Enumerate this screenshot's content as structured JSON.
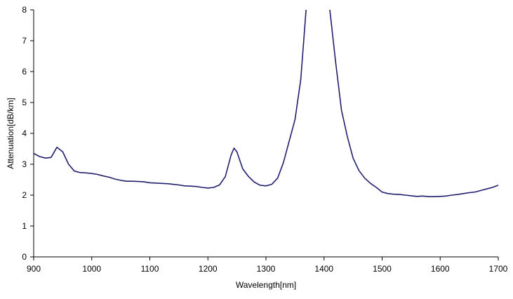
{
  "chart_data": {
    "type": "line",
    "title": "",
    "xlabel": "Wavelength[nm]",
    "ylabel": "Attenuation[dB/km]",
    "xlim": [
      900,
      1700
    ],
    "ylim": [
      0,
      8
    ],
    "xticks": [
      900,
      1000,
      1100,
      1200,
      1300,
      1400,
      1500,
      1600,
      1700
    ],
    "yticks": [
      0,
      1,
      2,
      3,
      4,
      5,
      6,
      7,
      8
    ],
    "grid": false,
    "legend": "none",
    "series": [
      {
        "color": "#1f1f6e",
        "points": [
          [
            900,
            3.35
          ],
          [
            910,
            3.25
          ],
          [
            920,
            3.2
          ],
          [
            930,
            3.22
          ],
          [
            940,
            3.55
          ],
          [
            950,
            3.4
          ],
          [
            960,
            3.0
          ],
          [
            970,
            2.78
          ],
          [
            980,
            2.73
          ],
          [
            990,
            2.72
          ],
          [
            1000,
            2.7
          ],
          [
            1010,
            2.67
          ],
          [
            1020,
            2.62
          ],
          [
            1030,
            2.58
          ],
          [
            1040,
            2.52
          ],
          [
            1050,
            2.48
          ],
          [
            1060,
            2.45
          ],
          [
            1070,
            2.45
          ],
          [
            1080,
            2.44
          ],
          [
            1090,
            2.43
          ],
          [
            1100,
            2.4
          ],
          [
            1110,
            2.39
          ],
          [
            1120,
            2.38
          ],
          [
            1130,
            2.37
          ],
          [
            1140,
            2.35
          ],
          [
            1150,
            2.33
          ],
          [
            1160,
            2.3
          ],
          [
            1170,
            2.29
          ],
          [
            1180,
            2.28
          ],
          [
            1190,
            2.25
          ],
          [
            1200,
            2.23
          ],
          [
            1210,
            2.25
          ],
          [
            1220,
            2.33
          ],
          [
            1230,
            2.6
          ],
          [
            1240,
            3.3
          ],
          [
            1245,
            3.52
          ],
          [
            1250,
            3.4
          ],
          [
            1260,
            2.85
          ],
          [
            1270,
            2.6
          ],
          [
            1280,
            2.42
          ],
          [
            1290,
            2.32
          ],
          [
            1300,
            2.3
          ],
          [
            1310,
            2.35
          ],
          [
            1320,
            2.55
          ],
          [
            1330,
            3.05
          ],
          [
            1340,
            3.75
          ],
          [
            1350,
            4.45
          ],
          [
            1360,
            5.75
          ],
          [
            1365,
            7.0
          ],
          [
            1369,
            8.0
          ]
        ]
      },
      {
        "color": "#1f1f6e",
        "points": [
          [
            1410,
            8.0
          ],
          [
            1420,
            6.3
          ],
          [
            1430,
            4.75
          ],
          [
            1440,
            3.9
          ],
          [
            1450,
            3.2
          ],
          [
            1460,
            2.8
          ],
          [
            1470,
            2.55
          ],
          [
            1480,
            2.38
          ],
          [
            1490,
            2.25
          ],
          [
            1500,
            2.1
          ],
          [
            1510,
            2.05
          ],
          [
            1520,
            2.03
          ],
          [
            1530,
            2.02
          ],
          [
            1540,
            2.0
          ],
          [
            1550,
            1.98
          ],
          [
            1560,
            1.96
          ],
          [
            1570,
            1.97
          ],
          [
            1580,
            1.95
          ],
          [
            1590,
            1.95
          ],
          [
            1600,
            1.96
          ],
          [
            1610,
            1.97
          ],
          [
            1620,
            2.0
          ],
          [
            1630,
            2.02
          ],
          [
            1640,
            2.05
          ],
          [
            1650,
            2.08
          ],
          [
            1660,
            2.1
          ],
          [
            1670,
            2.15
          ],
          [
            1680,
            2.2
          ],
          [
            1690,
            2.25
          ],
          [
            1700,
            2.32
          ]
        ]
      }
    ]
  }
}
